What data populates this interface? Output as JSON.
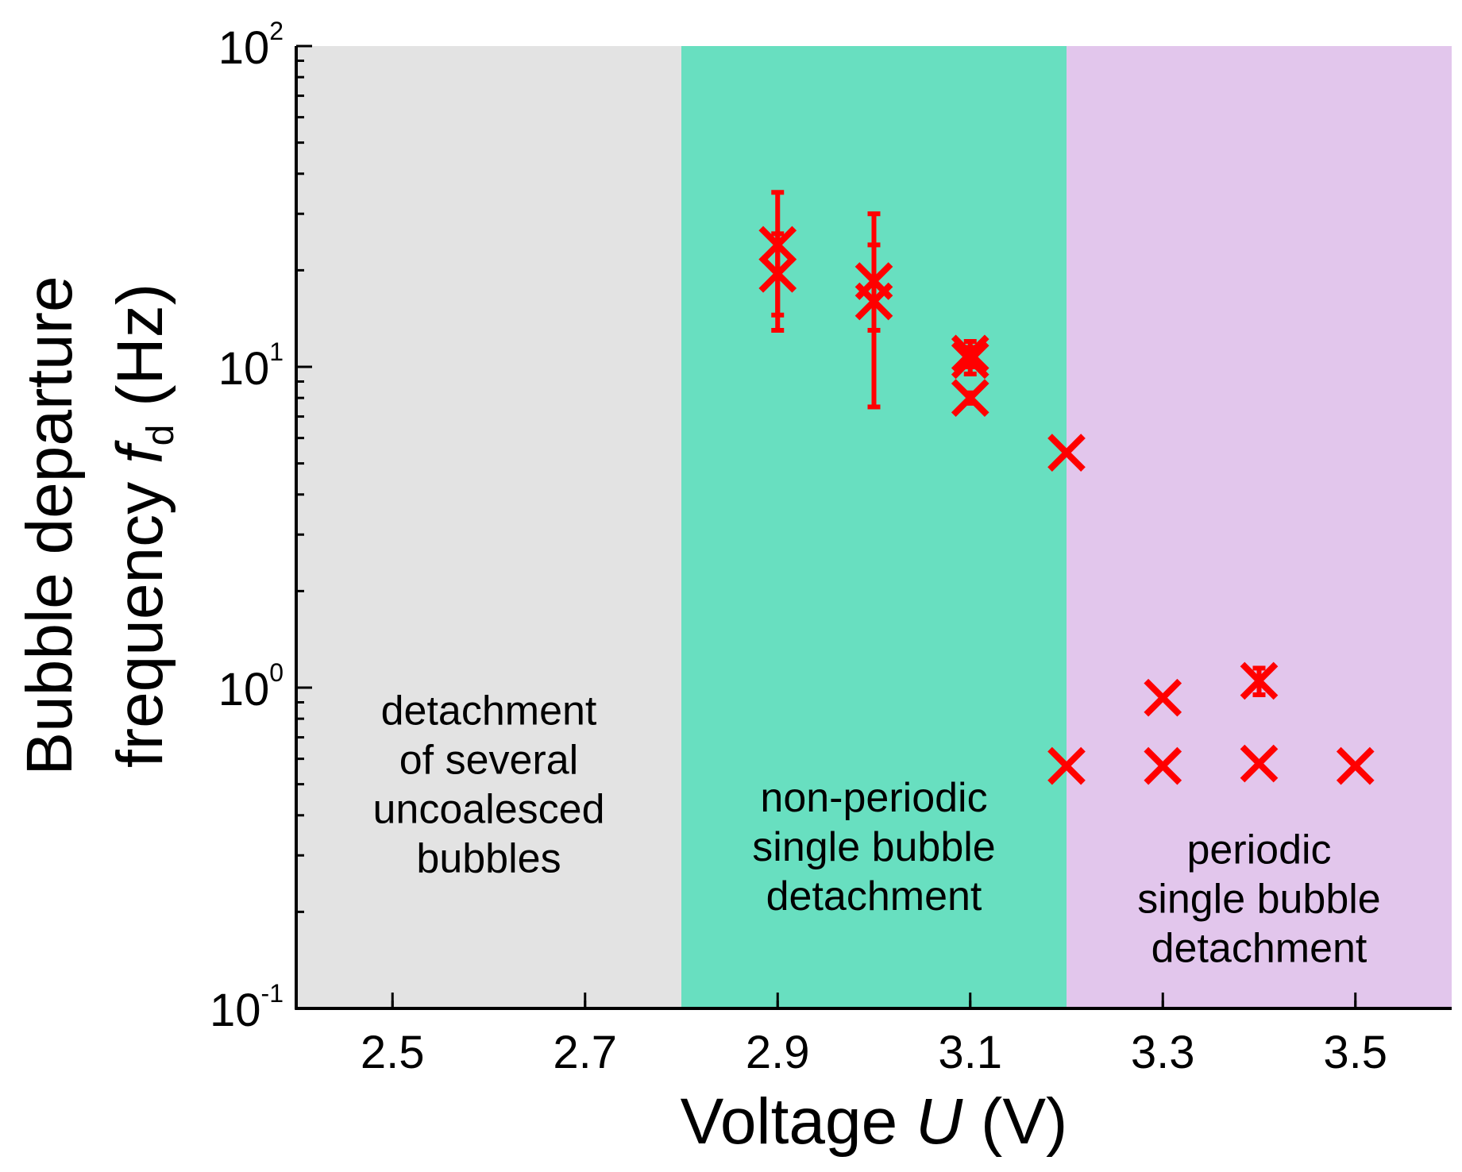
{
  "chart_data": {
    "type": "scatter",
    "scale": {
      "x": "linear",
      "y": "log"
    },
    "xlim": [
      2.4,
      3.6
    ],
    "ylim": [
      0.1,
      100
    ],
    "xlabel": {
      "prefix": "Voltage ",
      "var": "U",
      "suffix": " (V)"
    },
    "ylabel": {
      "line1": "Bubble departure",
      "line2_prefix": "frequency ",
      "line2_var": "f",
      "line2_sub": "d",
      "line2_suffix": " (Hz)"
    },
    "x_ticks": [
      {
        "value": 2.5,
        "label": "2.5"
      },
      {
        "value": 2.7,
        "label": "2.7"
      },
      {
        "value": 2.9,
        "label": "2.9"
      },
      {
        "value": 3.1,
        "label": "3.1"
      },
      {
        "value": 3.3,
        "label": "3.3"
      },
      {
        "value": 3.5,
        "label": "3.5"
      }
    ],
    "y_ticks": [
      {
        "value": 100,
        "base": "10",
        "exp": "2"
      },
      {
        "value": 10,
        "base": "10",
        "exp": "1"
      },
      {
        "value": 1,
        "base": "10",
        "exp": "0"
      },
      {
        "value": 0.1,
        "base": "10",
        "exp": "-1"
      }
    ],
    "regions": [
      {
        "x0": 2.4,
        "x1": 2.8,
        "color": "#e3e3e3",
        "label_x": 2.6,
        "label_y": 0.5,
        "lines": [
          "detachment",
          "of several",
          "uncoalesced",
          "bubbles"
        ]
      },
      {
        "x0": 2.8,
        "x1": 3.2,
        "color": "#68dfc0",
        "label_x": 3.0,
        "label_y": 0.32,
        "lines": [
          "non-periodic",
          "single bubble",
          "detachment"
        ]
      },
      {
        "x0": 3.2,
        "x1": 3.6,
        "color": "#e2c6ec",
        "label_x": 3.4,
        "label_y": 0.22,
        "lines": [
          "periodic",
          "single bubble",
          "detachment"
        ]
      }
    ],
    "series": [
      {
        "name": "measurements",
        "marker": "x",
        "color": "#ff0000",
        "points": [
          {
            "x": 2.9,
            "y": 24,
            "err_low": 14.5,
            "err_high": 35
          },
          {
            "x": 2.9,
            "y": 19.5,
            "err_low": 13,
            "err_high": 26
          },
          {
            "x": 3.0,
            "y": 18.5,
            "err_low": 13,
            "err_high": 30
          },
          {
            "x": 3.0,
            "y": 16,
            "err_low": 7.5,
            "err_high": 24
          },
          {
            "x": 3.1,
            "y": 11,
            "err_low": 10,
            "err_high": 12
          },
          {
            "x": 3.1,
            "y": 10.5,
            "err_low": 9.5,
            "err_high": 11.5
          },
          {
            "x": 3.1,
            "y": 8,
            "err_low": 7.7,
            "err_high": 8.3
          },
          {
            "x": 3.2,
            "y": 5.4
          },
          {
            "x": 3.2,
            "y": 0.57
          },
          {
            "x": 3.3,
            "y": 0.93
          },
          {
            "x": 3.3,
            "y": 0.57
          },
          {
            "x": 3.4,
            "y": 1.05,
            "err_low": 0.95,
            "err_high": 1.15
          },
          {
            "x": 3.4,
            "y": 0.58
          },
          {
            "x": 3.5,
            "y": 0.57
          }
        ]
      }
    ]
  }
}
